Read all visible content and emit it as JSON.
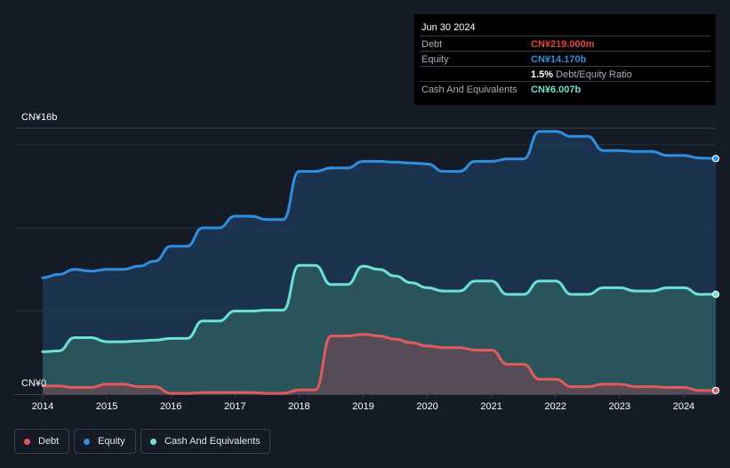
{
  "tooltip": {
    "date": "Jun 30 2024",
    "debt_label": "Debt",
    "debt_value": "CN¥219.000m",
    "equity_label": "Equity",
    "equity_value": "CN¥14.170b",
    "ratio_value": "1.5%",
    "ratio_label": "Debt/Equity Ratio",
    "cash_label": "Cash And Equivalents",
    "cash_value": "CN¥6.007b"
  },
  "legend": {
    "debt": "Debt",
    "equity": "Equity",
    "cash": "Cash And Equivalents"
  },
  "colors": {
    "background": "#151b26",
    "debt": "#e05c5c",
    "equity": "#2e8fe0",
    "cash": "#6ce2d4",
    "tooltip_debt": "#e8433c"
  },
  "chart_data": {
    "type": "area",
    "y_axis_labels": [
      "CN¥16b",
      "CN¥0"
    ],
    "ylim": [
      0,
      16
    ],
    "unit": "CN¥ billions",
    "x_tick_labels": [
      "2014",
      "2015",
      "2016",
      "2017",
      "2018",
      "2019",
      "2020",
      "2021",
      "2022",
      "2023",
      "2024"
    ],
    "xlim": [
      2014,
      2024.5
    ],
    "grid": true,
    "legend_position": "bottom-left",
    "series": [
      {
        "name": "Equity",
        "points": [
          [
            2014.0,
            7.0
          ],
          [
            2014.25,
            7.2
          ],
          [
            2014.5,
            7.5
          ],
          [
            2014.75,
            7.4
          ],
          [
            2015.0,
            7.5
          ],
          [
            2015.25,
            7.5
          ],
          [
            2015.5,
            7.7
          ],
          [
            2015.75,
            8.0
          ],
          [
            2016.0,
            8.9
          ],
          [
            2016.25,
            8.9
          ],
          [
            2016.5,
            10.0
          ],
          [
            2016.75,
            10.0
          ],
          [
            2017.0,
            10.7
          ],
          [
            2017.25,
            10.7
          ],
          [
            2017.5,
            10.5
          ],
          [
            2017.75,
            10.5
          ],
          [
            2018.0,
            13.4
          ],
          [
            2018.25,
            13.4
          ],
          [
            2018.5,
            13.6
          ],
          [
            2018.75,
            13.6
          ],
          [
            2019.0,
            14.0
          ],
          [
            2019.25,
            14.0
          ],
          [
            2019.5,
            13.95
          ],
          [
            2019.75,
            13.9
          ],
          [
            2020.0,
            13.85
          ],
          [
            2020.25,
            13.4
          ],
          [
            2020.5,
            13.4
          ],
          [
            2020.75,
            14.0
          ],
          [
            2021.0,
            14.0
          ],
          [
            2021.25,
            14.15
          ],
          [
            2021.5,
            14.15
          ],
          [
            2021.75,
            15.8
          ],
          [
            2022.0,
            15.8
          ],
          [
            2022.25,
            15.5
          ],
          [
            2022.5,
            15.5
          ],
          [
            2022.75,
            14.65
          ],
          [
            2023.0,
            14.65
          ],
          [
            2023.25,
            14.6
          ],
          [
            2023.5,
            14.6
          ],
          [
            2023.75,
            14.35
          ],
          [
            2024.0,
            14.35
          ],
          [
            2024.25,
            14.2
          ],
          [
            2024.5,
            14.17
          ]
        ]
      },
      {
        "name": "Cash And Equivalents",
        "points": [
          [
            2014.0,
            2.55
          ],
          [
            2014.25,
            2.6
          ],
          [
            2014.5,
            3.4
          ],
          [
            2014.75,
            3.4
          ],
          [
            2015.0,
            3.15
          ],
          [
            2015.25,
            3.15
          ],
          [
            2015.5,
            3.2
          ],
          [
            2015.75,
            3.25
          ],
          [
            2016.0,
            3.35
          ],
          [
            2016.25,
            3.35
          ],
          [
            2016.5,
            4.4
          ],
          [
            2016.75,
            4.4
          ],
          [
            2017.0,
            5.0
          ],
          [
            2017.25,
            5.0
          ],
          [
            2017.5,
            5.05
          ],
          [
            2017.75,
            5.05
          ],
          [
            2018.0,
            7.75
          ],
          [
            2018.25,
            7.75
          ],
          [
            2018.5,
            6.6
          ],
          [
            2018.75,
            6.6
          ],
          [
            2019.0,
            7.7
          ],
          [
            2019.25,
            7.5
          ],
          [
            2019.5,
            7.1
          ],
          [
            2019.75,
            6.7
          ],
          [
            2020.0,
            6.4
          ],
          [
            2020.25,
            6.2
          ],
          [
            2020.5,
            6.2
          ],
          [
            2020.75,
            6.8
          ],
          [
            2021.0,
            6.8
          ],
          [
            2021.25,
            6.0
          ],
          [
            2021.5,
            6.0
          ],
          [
            2021.75,
            6.8
          ],
          [
            2022.0,
            6.8
          ],
          [
            2022.25,
            6.0
          ],
          [
            2022.5,
            6.0
          ],
          [
            2022.75,
            6.4
          ],
          [
            2023.0,
            6.4
          ],
          [
            2023.25,
            6.2
          ],
          [
            2023.5,
            6.2
          ],
          [
            2023.75,
            6.4
          ],
          [
            2024.0,
            6.4
          ],
          [
            2024.25,
            6.0
          ],
          [
            2024.5,
            6.007
          ]
        ]
      },
      {
        "name": "Debt",
        "points": [
          [
            2014.0,
            0.5
          ],
          [
            2014.25,
            0.5
          ],
          [
            2014.5,
            0.4
          ],
          [
            2014.75,
            0.4
          ],
          [
            2015.0,
            0.6
          ],
          [
            2015.25,
            0.6
          ],
          [
            2015.5,
            0.45
          ],
          [
            2015.75,
            0.45
          ],
          [
            2016.0,
            0.05
          ],
          [
            2016.25,
            0.05
          ],
          [
            2016.5,
            0.1
          ],
          [
            2016.75,
            0.1
          ],
          [
            2017.0,
            0.1
          ],
          [
            2017.25,
            0.1
          ],
          [
            2017.5,
            0.05
          ],
          [
            2017.75,
            0.05
          ],
          [
            2018.0,
            0.25
          ],
          [
            2018.25,
            0.25
          ],
          [
            2018.5,
            3.5
          ],
          [
            2018.75,
            3.5
          ],
          [
            2019.0,
            3.6
          ],
          [
            2019.25,
            3.5
          ],
          [
            2019.5,
            3.3
          ],
          [
            2019.75,
            3.1
          ],
          [
            2020.0,
            2.9
          ],
          [
            2020.25,
            2.8
          ],
          [
            2020.5,
            2.8
          ],
          [
            2020.75,
            2.65
          ],
          [
            2021.0,
            2.65
          ],
          [
            2021.25,
            1.8
          ],
          [
            2021.5,
            1.8
          ],
          [
            2021.75,
            0.9
          ],
          [
            2022.0,
            0.9
          ],
          [
            2022.25,
            0.45
          ],
          [
            2022.5,
            0.45
          ],
          [
            2022.75,
            0.6
          ],
          [
            2023.0,
            0.6
          ],
          [
            2023.25,
            0.45
          ],
          [
            2023.5,
            0.45
          ],
          [
            2023.75,
            0.4
          ],
          [
            2024.0,
            0.4
          ],
          [
            2024.25,
            0.22
          ],
          [
            2024.5,
            0.219
          ]
        ]
      }
    ]
  }
}
